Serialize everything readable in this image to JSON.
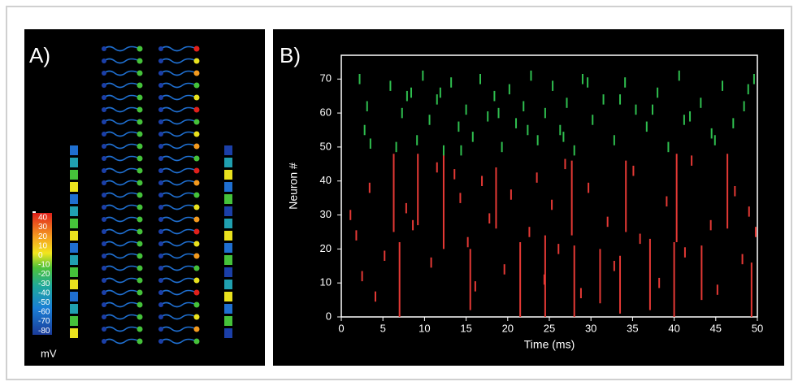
{
  "panel_a": {
    "label": "A)",
    "colorbar_labels": [
      40,
      30,
      20,
      10,
      0,
      -10,
      -20,
      -30,
      -40,
      -50,
      -60,
      -70,
      -80
    ],
    "unit": "mV"
  },
  "chart_data": {
    "type": "raster",
    "label": "B)",
    "xlabel": "Time (ms)",
    "ylabel": "Neuron #",
    "xlim": [
      0,
      50
    ],
    "ylim": [
      0,
      77
    ],
    "xticks": [
      0,
      5,
      10,
      15,
      20,
      25,
      30,
      35,
      40,
      45,
      50
    ],
    "yticks": [
      0,
      10,
      20,
      30,
      40,
      50,
      60,
      70
    ],
    "series": [
      {
        "color": "#2fbf4f",
        "x": [
          2.2,
          2.8,
          3.1,
          5.9,
          6.6,
          7.3,
          8.4,
          9.1,
          9.8,
          10.6,
          11.5,
          12.3,
          13.2,
          14.1,
          15.0,
          15.8,
          16.7,
          17.6,
          18.4,
          19.3,
          20.2,
          21.0,
          21.9,
          22.8,
          23.6,
          24.5,
          25.4,
          26.3,
          27.1,
          28.0,
          29.0,
          30.2,
          31.5,
          32.8,
          34.1,
          35.4,
          36.7,
          38.0,
          39.3,
          40.6,
          41.9,
          43.2,
          44.5,
          45.8,
          47.1,
          48.4,
          49.6,
          3.5,
          11.9,
          18.9,
          26.7,
          33.5,
          41.2,
          48.9,
          14.4,
          22.4,
          29.6,
          37.4,
          44.9,
          7.9
        ],
        "y": [
          70,
          55,
          62,
          68,
          50,
          60,
          66,
          52,
          71,
          58,
          64,
          49,
          69,
          56,
          61,
          53,
          70,
          59,
          65,
          50,
          67,
          57,
          62,
          71,
          52,
          60,
          68,
          55,
          63,
          49,
          70,
          58,
          64,
          52,
          69,
          61,
          56,
          66,
          50,
          71,
          59,
          63,
          54,
          68,
          57,
          62,
          70,
          51,
          66,
          60,
          53,
          64,
          58,
          67,
          49,
          55,
          69,
          61,
          52,
          65
        ]
      },
      {
        "color": "#e53935",
        "x": [
          1.1,
          1.8,
          2.5,
          3.4,
          4.1,
          5.2,
          7.8,
          8.6,
          10.8,
          11.5,
          13.6,
          14.3,
          15.2,
          16.1,
          16.9,
          17.8,
          19.6,
          20.4,
          22.6,
          23.5,
          24.4,
          25.3,
          26.1,
          26.9,
          28.8,
          29.7,
          32.0,
          32.8,
          35.1,
          35.9,
          38.2,
          39.1,
          41.3,
          42.1,
          44.4,
          45.2,
          47.3,
          48.2,
          49.0,
          49.8
        ],
        "y": [
          30,
          24,
          12,
          38,
          6,
          18,
          32,
          27,
          16,
          44,
          42,
          35,
          22,
          9,
          40,
          29,
          14,
          36,
          25,
          41,
          11,
          33,
          20,
          45,
          7,
          38,
          28,
          15,
          43,
          23,
          10,
          34,
          19,
          46,
          27,
          8,
          37,
          17,
          31,
          25
        ]
      }
    ],
    "bursts": {
      "color": "#e53935",
      "x": [
        6.3,
        9.2,
        12.3,
        18.6,
        21.5,
        27.7,
        31.1,
        34.2,
        37.1,
        40.3,
        43.3,
        46.4,
        7.0,
        15.5,
        24.5,
        28.0,
        33.5,
        40.0,
        49.3
      ],
      "low": [
        25,
        27,
        20,
        26,
        0,
        24,
        4,
        25,
        2,
        22,
        5,
        26,
        0,
        2,
        0,
        0,
        1,
        0,
        0
      ],
      "high": [
        48,
        48,
        48,
        44,
        22,
        46,
        20,
        46,
        23,
        48,
        21,
        48,
        22,
        20,
        24,
        21,
        18,
        22,
        16
      ]
    }
  }
}
